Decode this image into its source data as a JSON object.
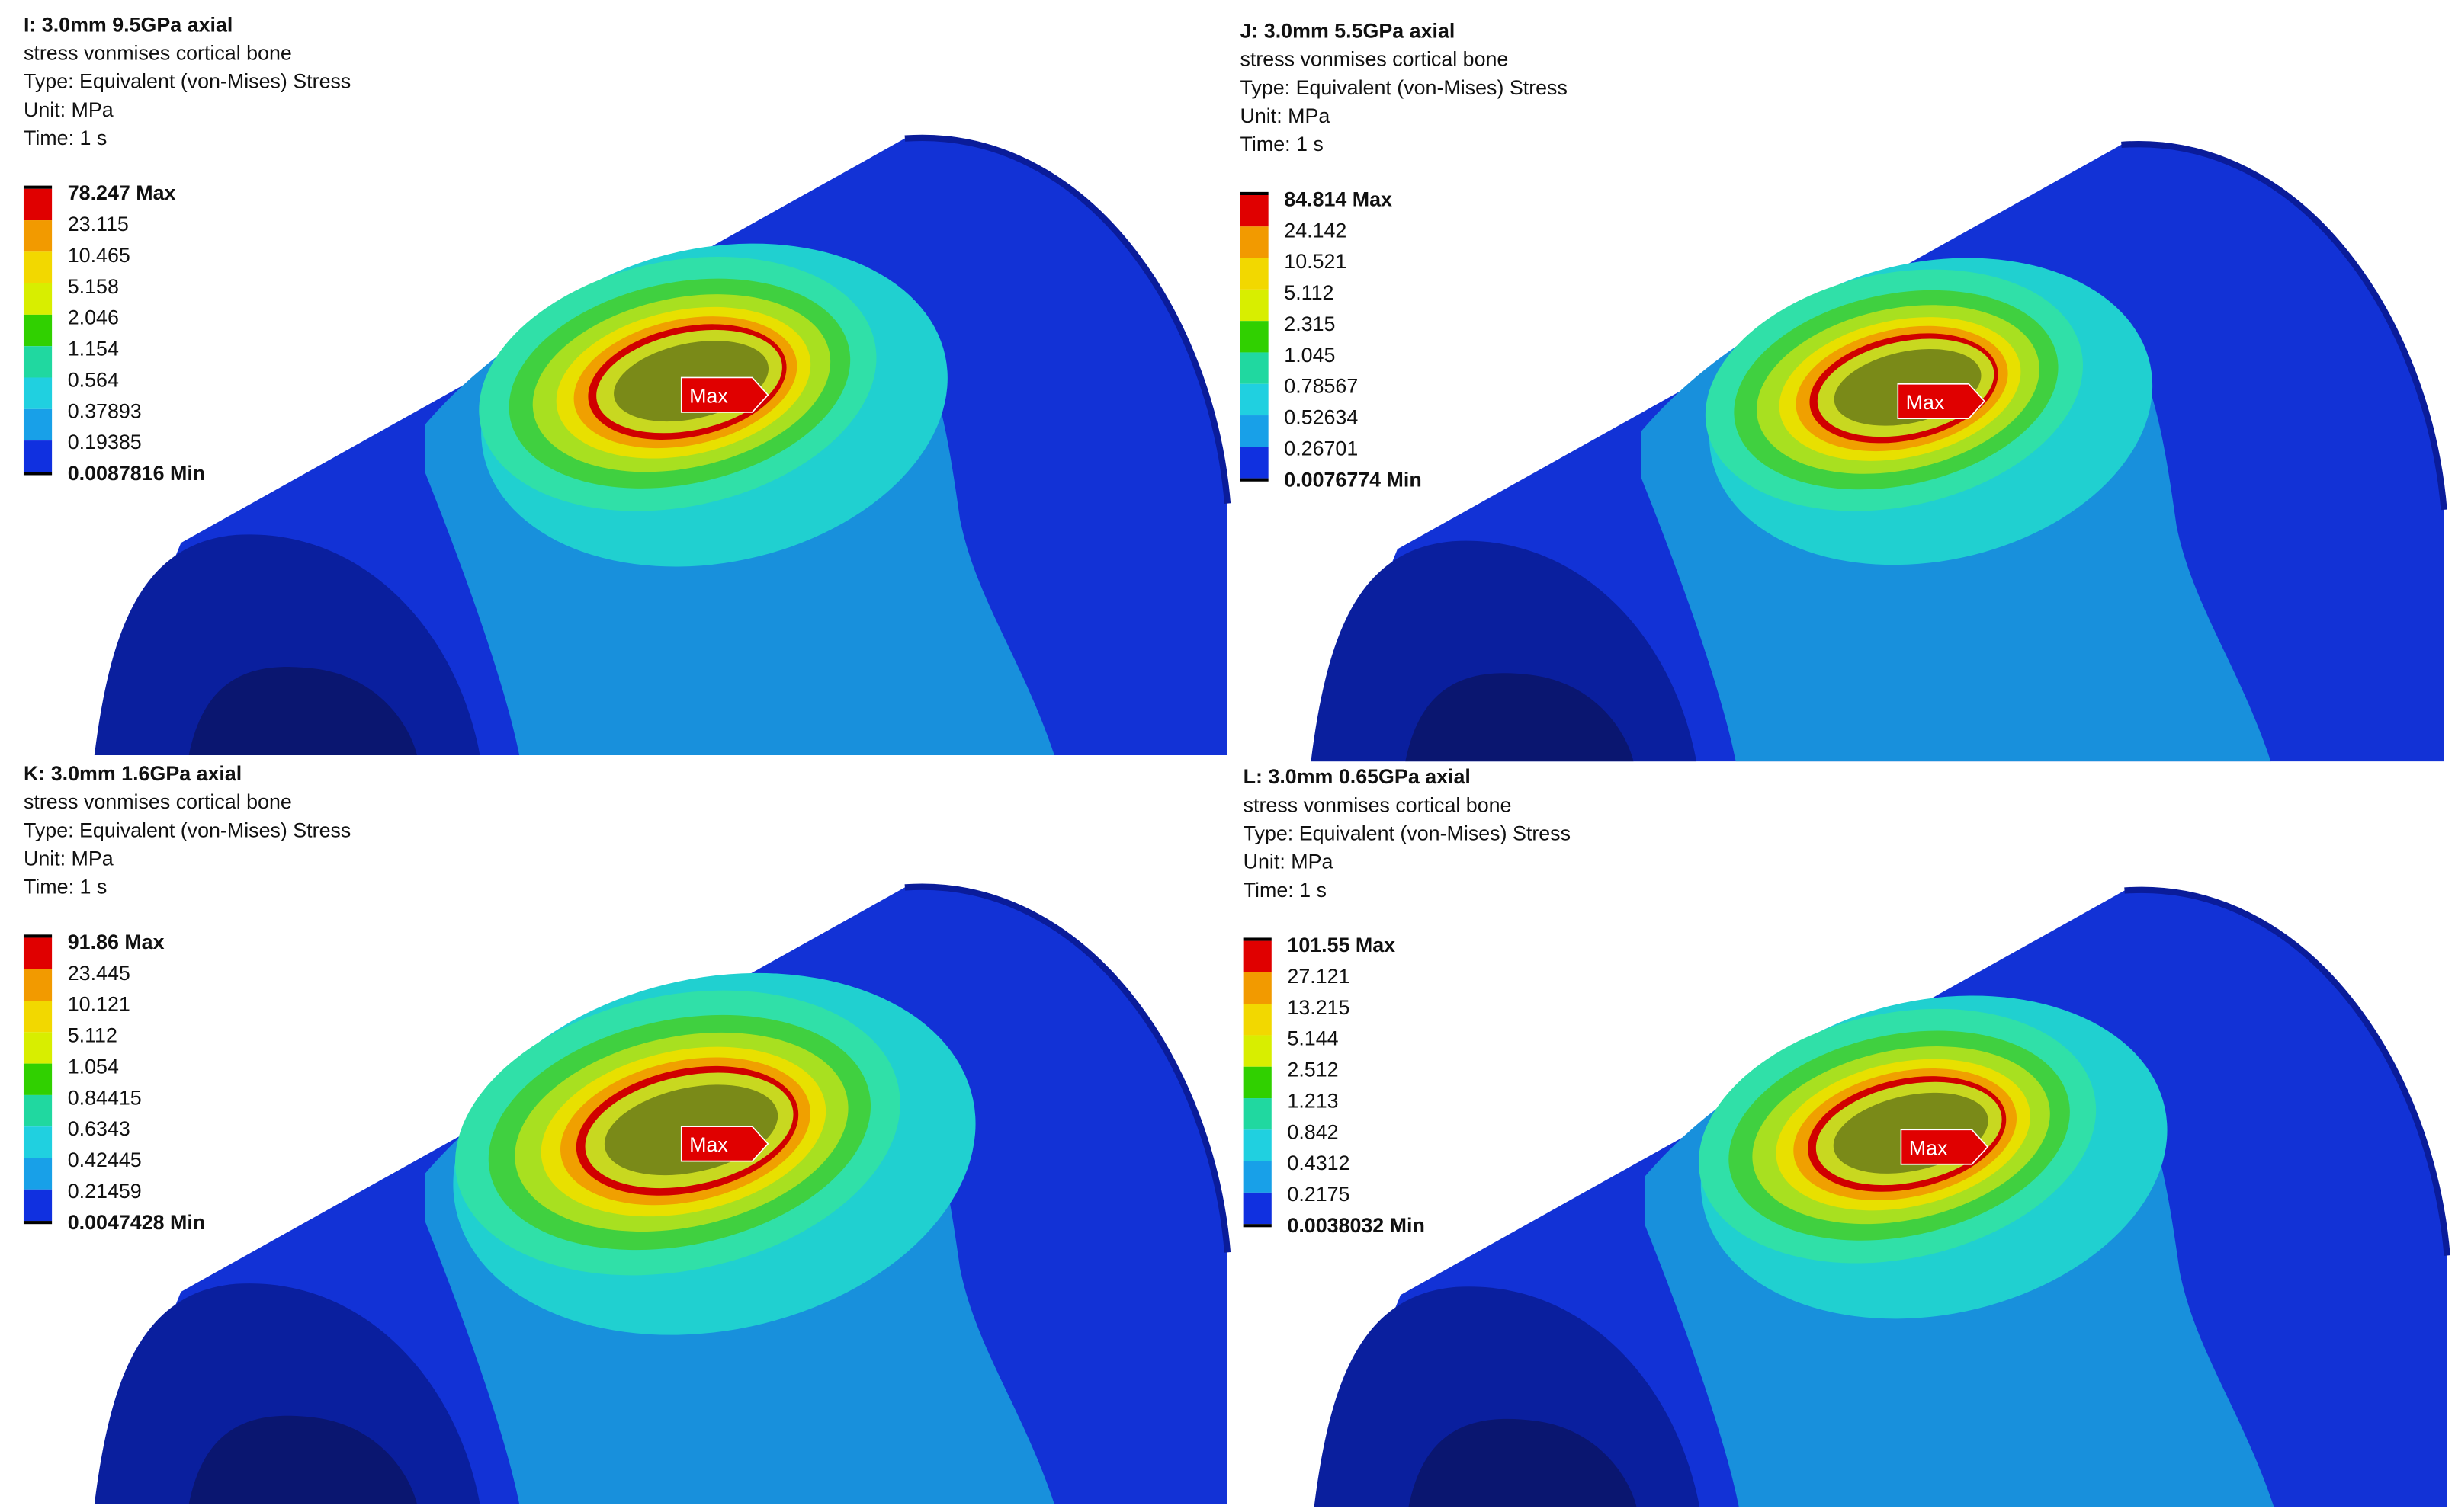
{
  "panels": [
    {
      "title": "I: 3.0mm 9.5GPa axial",
      "lines": [
        "stress vonmises cortical bone",
        "Type: Equivalent (von-Mises) Stress",
        "Unit: MPa",
        "Time: 1 s"
      ],
      "legend": [
        "78.247 Max",
        "23.115",
        "10.465",
        "5.158",
        "2.046",
        "1.154",
        "0.564",
        "0.37893",
        "0.19385",
        "0.0087816 Min"
      ],
      "probe": "Max"
    },
    {
      "title": "J: 3.0mm 5.5GPa axial",
      "lines": [
        "stress vonmises cortical bone",
        "Type: Equivalent (von-Mises) Stress",
        "Unit: MPa",
        "Time: 1 s"
      ],
      "legend": [
        "84.814 Max",
        "24.142",
        "10.521",
        "5.112",
        "2.315",
        "1.045",
        "0.78567",
        "0.52634",
        "0.26701",
        "0.0076774 Min"
      ],
      "probe": "Max"
    },
    {
      "title": "K: 3.0mm 1.6GPa axial",
      "lines": [
        "stress vonmises cortical bone",
        "Type: Equivalent (von-Mises) Stress",
        "Unit: MPa",
        "Time: 1 s"
      ],
      "legend": [
        "91.86 Max",
        "23.445",
        "10.121",
        "5.112",
        "1.054",
        "0.84415",
        "0.6343",
        "0.42445",
        "0.21459",
        "0.0047428 Min"
      ],
      "probe": "Max"
    },
    {
      "title": "L: 3.0mm 0.65GPa axial",
      "lines": [
        "stress vonmises cortical bone",
        "Type: Equivalent (von-Mises) Stress",
        "Unit: MPa",
        "Time: 1 s"
      ],
      "legend": [
        "101.55 Max",
        "27.121",
        "13.215",
        "5.144",
        "2.512",
        "1.213",
        "0.842",
        "0.4312",
        "0.2175",
        "0.0038032 Min"
      ],
      "probe": "Max"
    }
  ]
}
